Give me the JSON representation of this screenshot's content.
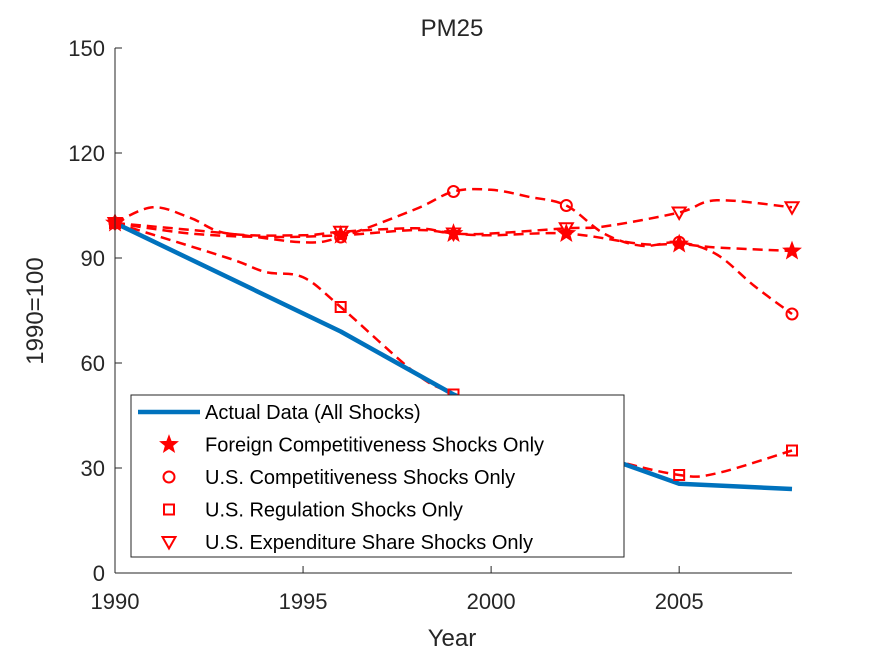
{
  "chart_data": {
    "type": "line",
    "title": "PM25",
    "xlabel": "Year",
    "ylabel": "1990=100",
    "xlim": [
      1990,
      2008
    ],
    "ylim": [
      0,
      150
    ],
    "xticks": [
      1990,
      1995,
      2000,
      2005
    ],
    "xtick_labels": [
      "1990",
      "1995",
      "2000",
      "2005"
    ],
    "yticks": [
      0,
      30,
      60,
      90,
      120,
      150
    ],
    "ytick_labels": [
      "0",
      "30",
      "60",
      "90",
      "120",
      "150"
    ],
    "grid": false,
    "legend_position": "bottom-left",
    "series": [
      {
        "name": "Actual Data (All Shocks)",
        "color": "#0072BD",
        "style": "solid",
        "marker": "none",
        "x": [
          1990,
          1996,
          1999,
          2002,
          2005,
          2008
        ],
        "y": [
          100,
          69,
          51,
          37,
          25.5,
          24
        ]
      },
      {
        "name": "Foreign Competitiveness Shocks Only",
        "color": "#FF0000",
        "style": "dashed",
        "marker": "star",
        "x": [
          1990,
          1992,
          1994,
          1996,
          1998,
          1999,
          2000,
          2002,
          2004,
          2005,
          2006,
          2008
        ],
        "y": [
          100,
          97,
          96,
          96.5,
          98,
          97,
          96.5,
          97,
          94,
          94,
          93,
          92
        ]
      },
      {
        "name": "U.S. Competitiveness Shocks Only",
        "color": "#FF0000",
        "style": "dashed",
        "marker": "circle",
        "x": [
          1990,
          1993,
          1995,
          1996,
          1998,
          1999,
          2000,
          2001,
          2002,
          2003,
          2004,
          2005,
          2006,
          2007,
          2008
        ],
        "y": [
          100,
          97,
          94.5,
          96,
          104,
          109,
          109.5,
          107.5,
          105,
          97,
          93.5,
          94.5,
          91,
          82,
          74
        ]
      },
      {
        "name": "U.S. Regulation Shocks Only",
        "color": "#FF0000",
        "style": "dashed",
        "marker": "square",
        "x": [
          1990,
          1993,
          1994,
          1995,
          1996,
          1998,
          1999,
          2001,
          2003,
          2005,
          2006,
          2008
        ],
        "y": [
          100,
          90,
          86,
          84.5,
          76,
          57,
          51,
          40,
          33,
          28,
          28.5,
          35
        ]
      },
      {
        "name": "U.S. Expenditure Share Shocks Only",
        "color": "#FF0000",
        "style": "dashed",
        "marker": "triangle-down",
        "x": [
          1990,
          1991,
          1992,
          1993,
          1995,
          1996,
          1998,
          1999,
          2000,
          2002,
          2003,
          2005,
          2006,
          2008
        ],
        "y": [
          100,
          104.5,
          101.5,
          97,
          96.5,
          97.5,
          98.5,
          97,
          97,
          98.5,
          99,
          103,
          106.5,
          104.5
        ]
      }
    ],
    "marker_x": [
      1990,
      1996,
      1999,
      2002,
      2005,
      2008
    ]
  }
}
